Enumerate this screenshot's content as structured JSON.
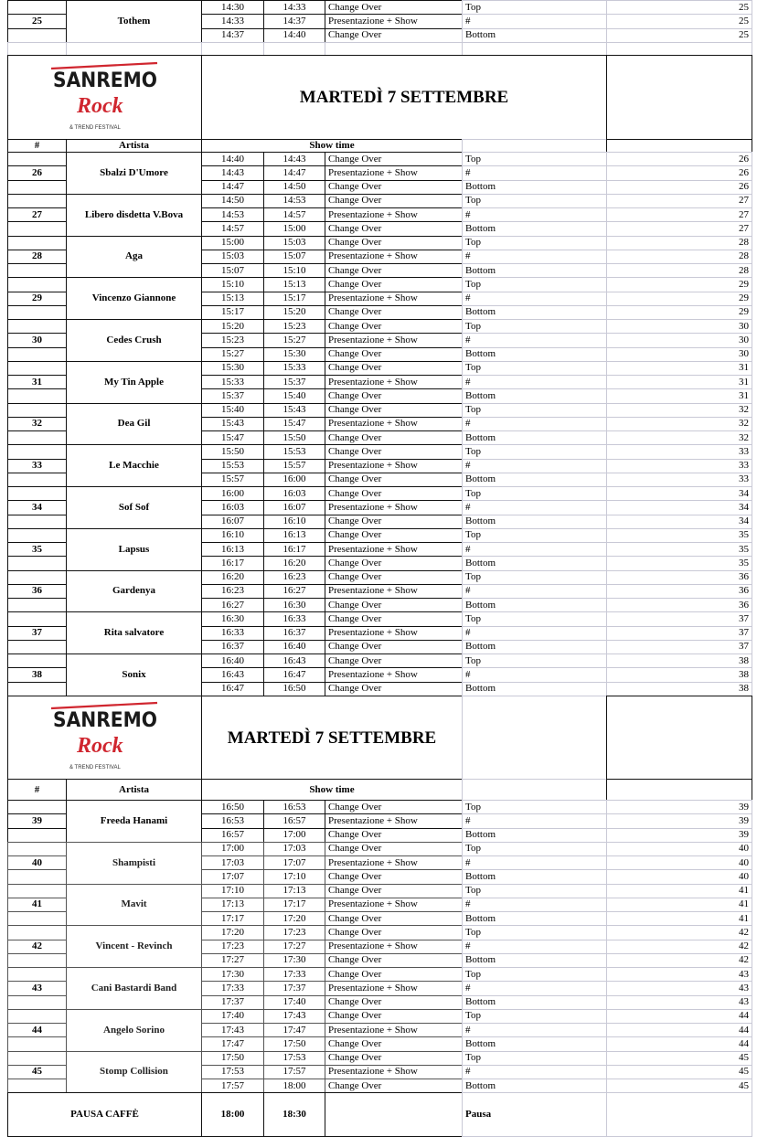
{
  "logo": {
    "top": "SANREMO",
    "middle": "Rock",
    "bottom": "& TREND FESTIVAL",
    "colors": {
      "black": "#1a1a1a",
      "red": "#d0262f"
    }
  },
  "sections": [
    {
      "title": "MARTEDÌ 7 SETTEMBRE",
      "headers": {
        "number": "#",
        "artist": "Artista",
        "show_time": "Show time"
      }
    },
    {
      "title": "MARTEDÌ 7 SETTEMBRE",
      "headers": {
        "number": "#",
        "artist": "Artista",
        "show_time": "Show time"
      }
    }
  ],
  "artists": [
    {
      "number": "25",
      "name": "Tothem",
      "slots": [
        [
          "14:30",
          "14:33",
          "Change Over",
          "Top"
        ],
        [
          "14:33",
          "14:37",
          "Presentazione + Show",
          "#"
        ],
        [
          "14:37",
          "14:40",
          "Change Over",
          "Bottom"
        ]
      ]
    },
    {
      "number": "26",
      "name": "Sbalzi D'Umore",
      "slots": [
        [
          "14:40",
          "14:43",
          "Change Over",
          "Top"
        ],
        [
          "14:43",
          "14:47",
          "Presentazione + Show",
          "#"
        ],
        [
          "14:47",
          "14:50",
          "Change Over",
          "Bottom"
        ]
      ]
    },
    {
      "number": "27",
      "name": "Libero disdetta V.Bova",
      "slots": [
        [
          "14:50",
          "14:53",
          "Change Over",
          "Top"
        ],
        [
          "14:53",
          "14:57",
          "Presentazione + Show",
          "#"
        ],
        [
          "14:57",
          "15:00",
          "Change Over",
          "Bottom"
        ]
      ]
    },
    {
      "number": "28",
      "name": "Aga",
      "slots": [
        [
          "15:00",
          "15:03",
          "Change Over",
          "Top"
        ],
        [
          "15:03",
          "15:07",
          "Presentazione + Show",
          "#"
        ],
        [
          "15:07",
          "15:10",
          "Change Over",
          "Bottom"
        ]
      ]
    },
    {
      "number": "29",
      "name": "Vincenzo Giannone",
      "slots": [
        [
          "15:10",
          "15:13",
          "Change Over",
          "Top"
        ],
        [
          "15:13",
          "15:17",
          "Presentazione + Show",
          "#"
        ],
        [
          "15:17",
          "15:20",
          "Change Over",
          "Bottom"
        ]
      ]
    },
    {
      "number": "30",
      "name": "Cedes Crush",
      "slots": [
        [
          "15:20",
          "15:23",
          "Change Over",
          "Top"
        ],
        [
          "15:23",
          "15:27",
          "Presentazione + Show",
          "#"
        ],
        [
          "15:27",
          "15:30",
          "Change Over",
          "Bottom"
        ]
      ]
    },
    {
      "number": "31",
      "name": "My Tin Apple",
      "slots": [
        [
          "15:30",
          "15:33",
          "Change Over",
          "Top"
        ],
        [
          "15:33",
          "15:37",
          "Presentazione + Show",
          "#"
        ],
        [
          "15:37",
          "15:40",
          "Change Over",
          "Bottom"
        ]
      ]
    },
    {
      "number": "32",
      "name": "Dea Gil",
      "slots": [
        [
          "15:40",
          "15:43",
          "Change Over",
          "Top"
        ],
        [
          "15:43",
          "15:47",
          "Presentazione + Show",
          "#"
        ],
        [
          "15:47",
          "15:50",
          "Change Over",
          "Bottom"
        ]
      ]
    },
    {
      "number": "33",
      "name": "Le Macchie",
      "slots": [
        [
          "15:50",
          "15:53",
          "Change Over",
          "Top"
        ],
        [
          "15:53",
          "15:57",
          "Presentazione + Show",
          "#"
        ],
        [
          "15:57",
          "16:00",
          "Change Over",
          "Bottom"
        ]
      ]
    },
    {
      "number": "34",
      "name": "Sof Sof",
      "slots": [
        [
          "16:00",
          "16:03",
          "Change Over",
          "Top"
        ],
        [
          "16:03",
          "16:07",
          "Presentazione + Show",
          "#"
        ],
        [
          "16:07",
          "16:10",
          "Change Over",
          "Bottom"
        ]
      ]
    },
    {
      "number": "35",
      "name": "Lapsus",
      "slots": [
        [
          "16:10",
          "16:13",
          "Change Over",
          "Top"
        ],
        [
          "16:13",
          "16:17",
          "Presentazione + Show",
          "#"
        ],
        [
          "16:17",
          "16:20",
          "Change Over",
          "Bottom"
        ]
      ]
    },
    {
      "number": "36",
      "name": "Gardenya",
      "slots": [
        [
          "16:20",
          "16:23",
          "Change Over",
          "Top"
        ],
        [
          "16:23",
          "16:27",
          "Presentazione + Show",
          "#"
        ],
        [
          "16:27",
          "16:30",
          "Change Over",
          "Bottom"
        ]
      ]
    },
    {
      "number": "37",
      "name": "Rita salvatore",
      "slots": [
        [
          "16:30",
          "16:33",
          "Change Over",
          "Top"
        ],
        [
          "16:33",
          "16:37",
          "Presentazione + Show",
          "#"
        ],
        [
          "16:37",
          "16:40",
          "Change Over",
          "Bottom"
        ]
      ]
    },
    {
      "number": "38",
      "name": "Sonix",
      "slots": [
        [
          "16:40",
          "16:43",
          "Change Over",
          "Top"
        ],
        [
          "16:43",
          "16:47",
          "Presentazione + Show",
          "#"
        ],
        [
          "16:47",
          "16:50",
          "Change Over",
          "Bottom"
        ]
      ]
    },
    {
      "number": "39",
      "name": "Freeda Hanami",
      "slots": [
        [
          "16:50",
          "16:53",
          "Change Over",
          "Top"
        ],
        [
          "16:53",
          "16:57",
          "Presentazione + Show",
          "#"
        ],
        [
          "16:57",
          "17:00",
          "Change Over",
          "Bottom"
        ]
      ]
    },
    {
      "number": "40",
      "name": "Shampisti",
      "slots": [
        [
          "17:00",
          "17:03",
          "Change Over",
          "Top"
        ],
        [
          "17:03",
          "17:07",
          "Presentazione + Show",
          "#"
        ],
        [
          "17:07",
          "17:10",
          "Change Over",
          "Bottom"
        ]
      ]
    },
    {
      "number": "41",
      "name": "Mavit",
      "slots": [
        [
          "17:10",
          "17:13",
          "Change Over",
          "Top"
        ],
        [
          "17:13",
          "17:17",
          "Presentazione + Show",
          "#"
        ],
        [
          "17:17",
          "17:20",
          "Change Over",
          "Bottom"
        ]
      ]
    },
    {
      "number": "42",
      "name": "Vincent - Revinch",
      "slots": [
        [
          "17:20",
          "17:23",
          "Change Over",
          "Top"
        ],
        [
          "17:23",
          "17:27",
          "Presentazione + Show",
          "#"
        ],
        [
          "17:27",
          "17:30",
          "Change Over",
          "Bottom"
        ]
      ]
    },
    {
      "number": "43",
      "name": "Cani Bastardi Band",
      "slots": [
        [
          "17:30",
          "17:33",
          "Change Over",
          "Top"
        ],
        [
          "17:33",
          "17:37",
          "Presentazione + Show",
          "#"
        ],
        [
          "17:37",
          "17:40",
          "Change Over",
          "Bottom"
        ]
      ]
    },
    {
      "number": "44",
      "name": "Angelo Sorino",
      "slots": [
        [
          "17:40",
          "17:43",
          "Change Over",
          "Top"
        ],
        [
          "17:43",
          "17:47",
          "Presentazione + Show",
          "#"
        ],
        [
          "17:47",
          "17:50",
          "Change Over",
          "Bottom"
        ]
      ]
    },
    {
      "number": "45",
      "name": "Stomp Collision",
      "slots": [
        [
          "17:50",
          "17:53",
          "Change Over",
          "Top"
        ],
        [
          "17:53",
          "17:57",
          "Presentazione + Show",
          "#"
        ],
        [
          "17:57",
          "18:00",
          "Change Over",
          "Bottom"
        ]
      ]
    }
  ],
  "pause": {
    "label": "PAUSA CAFFÈ",
    "start": "18:00",
    "end": "18:30",
    "position": "Pausa"
  }
}
